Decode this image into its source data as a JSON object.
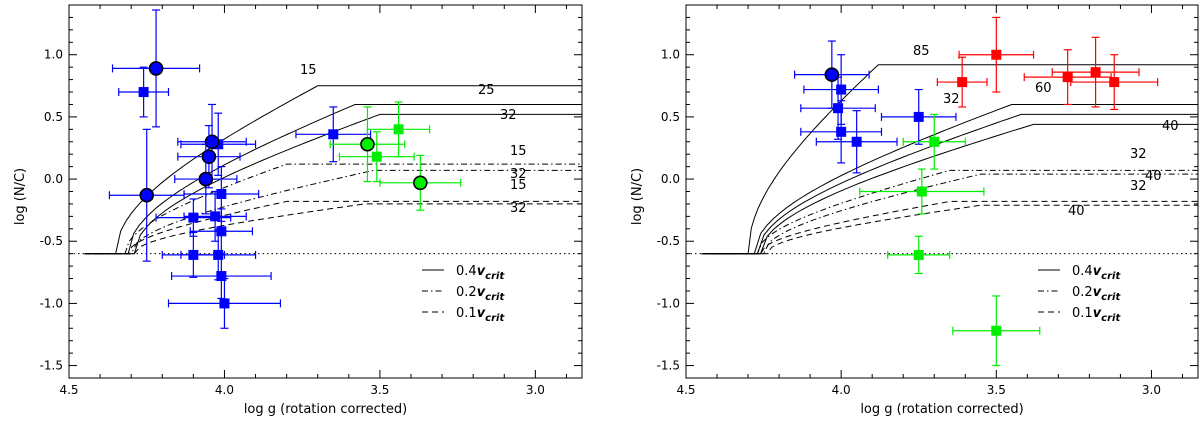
{
  "chart_data": [
    {
      "type": "scatter",
      "title": "",
      "xlabel": "log g (rotation corrected)",
      "ylabel": "log (N/C)",
      "xlim": [
        4.5,
        2.85
      ],
      "ylim": [
        -1.6,
        1.4
      ],
      "xticks": [
        4.5,
        4.0,
        3.5,
        3.0
      ],
      "xtick_labels": [
        "4.5",
        "4.0",
        "3.5",
        "3.0"
      ],
      "yticks": [
        -1.5,
        -1.0,
        -0.5,
        0.0,
        0.5,
        1.0
      ],
      "ytick_labels": [
        "-1.5",
        "-1.0",
        "-0.5",
        "0.0",
        "0.5",
        "1.0"
      ],
      "baseline": -0.6,
      "series": [
        {
          "name": "blue squares",
          "color": "#0000ff",
          "marker": "square",
          "points": [
            {
              "x": 4.26,
              "y": 0.7,
              "xerr": 0.08,
              "yerr": 0.2
            },
            {
              "x": 4.1,
              "y": -0.31,
              "xerr": 0.12,
              "yerr": 0.15
            },
            {
              "x": 4.1,
              "y": -0.61,
              "xerr": 0.1,
              "yerr": 0.18
            },
            {
              "x": 4.02,
              "y": 0.28,
              "xerr": 0.12,
              "yerr": 0.25
            },
            {
              "x": 4.01,
              "y": -0.12,
              "xerr": 0.12,
              "yerr": 0.22
            },
            {
              "x": 4.03,
              "y": -0.3,
              "xerr": 0.1,
              "yerr": 0.2
            },
            {
              "x": 4.01,
              "y": -0.42,
              "xerr": 0.1,
              "yerr": 0.18
            },
            {
              "x": 4.02,
              "y": -0.61,
              "xerr": 0.12,
              "yerr": 0.2
            },
            {
              "x": 4.01,
              "y": -0.78,
              "xerr": 0.16,
              "yerr": 0.18
            },
            {
              "x": 4.0,
              "y": -1.0,
              "xerr": 0.18,
              "yerr": 0.2
            },
            {
              "x": 3.65,
              "y": 0.36,
              "xerr": 0.12,
              "yerr": 0.22
            }
          ]
        },
        {
          "name": "blue circles",
          "color": "#0000ff",
          "marker": "circle",
          "points": [
            {
              "x": 4.22,
              "y": 0.89,
              "xerr": 0.14,
              "yerr": 0.47
            },
            {
              "x": 4.25,
              "y": -0.13,
              "xerr": 0.12,
              "yerr": 0.53
            },
            {
              "x": 4.04,
              "y": 0.3,
              "xerr": 0.11,
              "yerr": 0.3
            },
            {
              "x": 4.05,
              "y": 0.18,
              "xerr": 0.1,
              "yerr": 0.25
            },
            {
              "x": 4.06,
              "y": 0.0,
              "xerr": 0.1,
              "yerr": 0.28
            }
          ]
        },
        {
          "name": "green squares",
          "color": "#00ee00",
          "marker": "square",
          "points": [
            {
              "x": 3.44,
              "y": 0.4,
              "xerr": 0.1,
              "yerr": 0.22
            },
            {
              "x": 3.51,
              "y": 0.18,
              "xerr": 0.12,
              "yerr": 0.2
            }
          ]
        },
        {
          "name": "green circles",
          "color": "#00ee00",
          "marker": "circle",
          "points": [
            {
              "x": 3.54,
              "y": 0.28,
              "xerr": 0.12,
              "yerr": 0.3
            },
            {
              "x": 3.37,
              "y": -0.03,
              "xerr": 0.13,
              "yerr": 0.22
            }
          ]
        }
      ],
      "tracks": [
        {
          "style": "solid",
          "plateau": 0.75,
          "start": 4.35,
          "turn": 3.7,
          "label": "15"
        },
        {
          "style": "solid",
          "plateau": 0.6,
          "start": 4.31,
          "turn": 3.58,
          "label": "25"
        },
        {
          "style": "solid",
          "plateau": 0.52,
          "start": 4.29,
          "turn": 3.5,
          "label": "32"
        },
        {
          "style": "dashdot",
          "plateau": 0.12,
          "start": 4.32,
          "turn": 3.8,
          "label": "15"
        },
        {
          "style": "dashdot",
          "plateau": 0.07,
          "start": 4.3,
          "turn": 3.52,
          "label": "32"
        },
        {
          "style": "dashed",
          "plateau": -0.18,
          "start": 4.31,
          "turn": 3.8,
          "label": "15"
        },
        {
          "style": "dashed",
          "plateau": -0.2,
          "start": 4.29,
          "turn": 3.55,
          "label": "32"
        }
      ],
      "legend": {
        "position": "bottom-right",
        "entries": [
          {
            "style": "solid",
            "coef": "0.4",
            "sym": "v",
            "sub": "crit"
          },
          {
            "style": "dashdot",
            "coef": "0.2",
            "sym": "v",
            "sub": "crit"
          },
          {
            "style": "dashed",
            "coef": "0.1",
            "sym": "v",
            "sub": "crit"
          }
        ]
      }
    },
    {
      "type": "scatter",
      "title": "",
      "xlabel": "log g (rotation corrected)",
      "ylabel": "log (N/C)",
      "xlim": [
        4.5,
        2.85
      ],
      "ylim": [
        -1.6,
        1.4
      ],
      "xticks": [
        4.5,
        4.0,
        3.5,
        3.0
      ],
      "xtick_labels": [
        "4.5",
        "4.0",
        "3.5",
        "3.0"
      ],
      "yticks": [
        -1.5,
        -1.0,
        -0.5,
        0.0,
        0.5,
        1.0
      ],
      "ytick_labels": [
        "-1.5",
        "-1.0",
        "-0.5",
        "0.0",
        "0.5",
        "1.0"
      ],
      "baseline": -0.6,
      "series": [
        {
          "name": "blue squares",
          "color": "#0000ff",
          "marker": "square",
          "points": [
            {
              "x": 4.0,
              "y": 0.72,
              "xerr": 0.12,
              "yerr": 0.28
            },
            {
              "x": 4.01,
              "y": 0.57,
              "xerr": 0.12,
              "yerr": 0.25
            },
            {
              "x": 4.0,
              "y": 0.38,
              "xerr": 0.13,
              "yerr": 0.25
            },
            {
              "x": 3.95,
              "y": 0.3,
              "xerr": 0.13,
              "yerr": 0.25
            },
            {
              "x": 3.75,
              "y": 0.5,
              "xerr": 0.12,
              "yerr": 0.22
            }
          ]
        },
        {
          "name": "blue circles",
          "color": "#0000ff",
          "marker": "circle",
          "points": [
            {
              "x": 4.03,
              "y": 0.84,
              "xerr": 0.12,
              "yerr": 0.27
            }
          ]
        },
        {
          "name": "red squares",
          "color": "#ff0000",
          "marker": "square",
          "points": [
            {
              "x": 3.5,
              "y": 1.0,
              "xerr": 0.12,
              "yerr": 0.3
            },
            {
              "x": 3.61,
              "y": 0.78,
              "xerr": 0.08,
              "yerr": 0.2
            },
            {
              "x": 3.27,
              "y": 0.82,
              "xerr": 0.14,
              "yerr": 0.22
            },
            {
              "x": 3.18,
              "y": 0.86,
              "xerr": 0.14,
              "yerr": 0.28
            },
            {
              "x": 3.12,
              "y": 0.78,
              "xerr": 0.14,
              "yerr": 0.22
            }
          ]
        },
        {
          "name": "green squares",
          "color": "#00ee00",
          "marker": "square",
          "points": [
            {
              "x": 3.7,
              "y": 0.3,
              "xerr": 0.1,
              "yerr": 0.22
            },
            {
              "x": 3.74,
              "y": -0.1,
              "xerr": 0.2,
              "yerr": 0.18
            },
            {
              "x": 3.75,
              "y": -0.61,
              "xerr": 0.1,
              "yerr": 0.15
            },
            {
              "x": 3.5,
              "y": -1.22,
              "xerr": 0.14,
              "yerr": 0.28
            }
          ]
        }
      ],
      "tracks": [
        {
          "style": "solid",
          "plateau": 0.92,
          "start": 4.3,
          "turn": 3.88,
          "label": "85"
        },
        {
          "style": "solid",
          "plateau": 0.6,
          "start": 4.28,
          "turn": 3.45,
          "label": "60"
        },
        {
          "style": "solid",
          "plateau": 0.52,
          "start": 4.27,
          "turn": 3.42,
          "label": "32"
        },
        {
          "style": "solid",
          "plateau": 0.44,
          "start": 4.26,
          "turn": 3.38,
          "label": "40"
        },
        {
          "style": "dashdot",
          "plateau": 0.07,
          "start": 4.27,
          "turn": 3.65,
          "label": "32"
        },
        {
          "style": "dashdot",
          "plateau": 0.04,
          "start": 4.25,
          "turn": 3.55,
          "label": "40"
        },
        {
          "style": "dashed",
          "plateau": -0.18,
          "start": 4.26,
          "turn": 3.65,
          "label": "32"
        },
        {
          "style": "dashed",
          "plateau": -0.21,
          "start": 4.24,
          "turn": 3.55,
          "label": "40"
        }
      ],
      "legend": {
        "position": "bottom-right",
        "entries": [
          {
            "style": "solid",
            "coef": "0.4",
            "sym": "v",
            "sub": "crit"
          },
          {
            "style": "dashdot",
            "coef": "0.2",
            "sym": "v",
            "sub": "crit"
          },
          {
            "style": "dashed",
            "coef": "0.1",
            "sym": "v",
            "sub": "crit"
          }
        ]
      }
    }
  ]
}
